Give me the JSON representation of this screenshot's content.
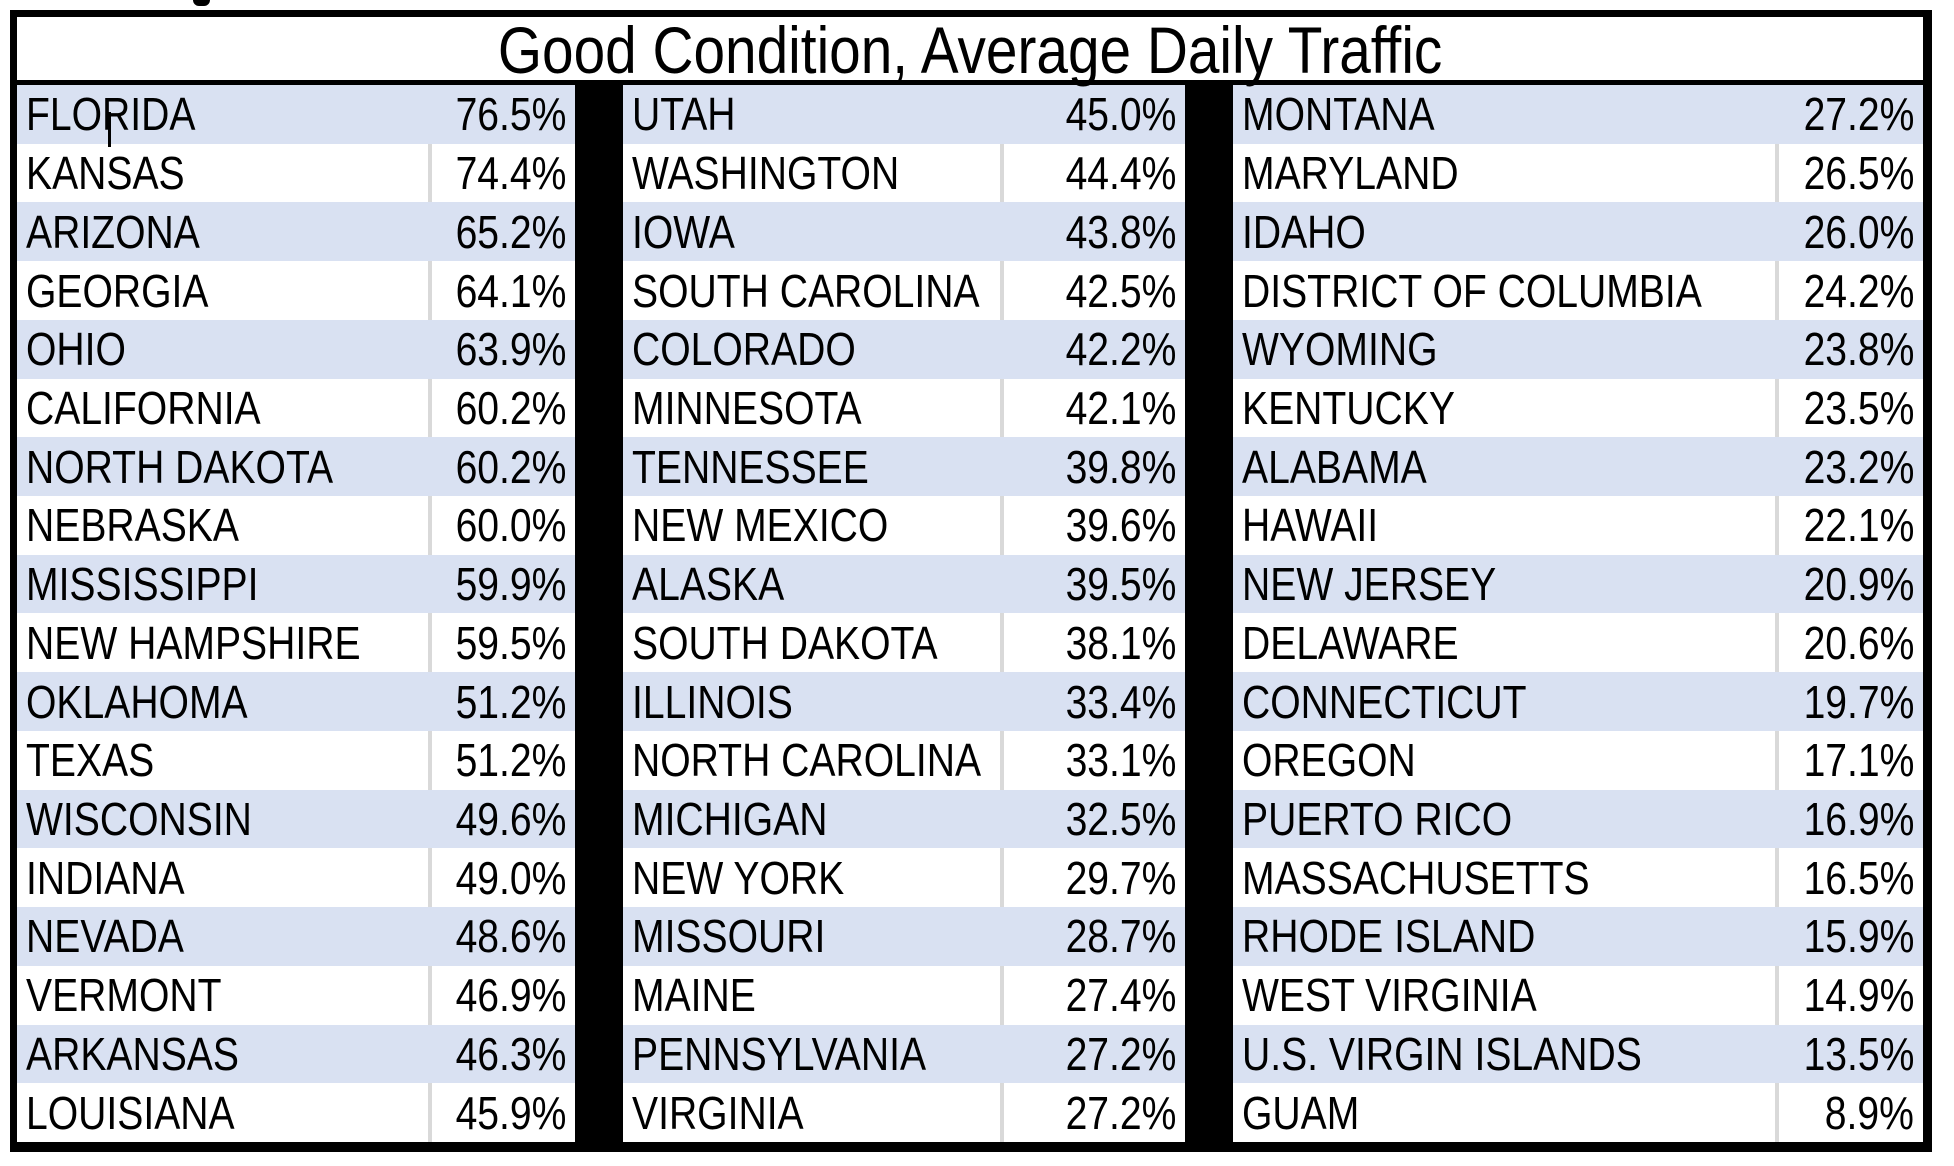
{
  "colors": {
    "band_fill": "#D9E1F2",
    "plain_fill": "#FFFFFF",
    "border": "#000000",
    "inner_divider": "#D9D9D9",
    "text": "#000000"
  },
  "text_cursor": {
    "visible": true,
    "in_row": "FLORIDA",
    "after_text": "FLO"
  },
  "chart_data": {
    "type": "table",
    "title": "Good Condition, Average Daily Traffic",
    "columns_per_group": [
      "state",
      "percent"
    ],
    "legend_position": "none",
    "grid": "banded-rows",
    "groups": [
      {
        "rows": [
          {
            "state": "FLORIDA",
            "value": "76.5%"
          },
          {
            "state": "KANSAS",
            "value": "74.4%"
          },
          {
            "state": "ARIZONA",
            "value": "65.2%"
          },
          {
            "state": "GEORGIA",
            "value": "64.1%"
          },
          {
            "state": "OHIO",
            "value": "63.9%"
          },
          {
            "state": "CALIFORNIA",
            "value": "60.2%"
          },
          {
            "state": "NORTH DAKOTA",
            "value": "60.2%"
          },
          {
            "state": "NEBRASKA",
            "value": "60.0%"
          },
          {
            "state": "MISSISSIPPI",
            "value": "59.9%"
          },
          {
            "state": "NEW HAMPSHIRE",
            "value": "59.5%"
          },
          {
            "state": "OKLAHOMA",
            "value": "51.2%"
          },
          {
            "state": "TEXAS",
            "value": "51.2%"
          },
          {
            "state": "WISCONSIN",
            "value": "49.6%"
          },
          {
            "state": "INDIANA",
            "value": "49.0%"
          },
          {
            "state": "NEVADA",
            "value": "48.6%"
          },
          {
            "state": "VERMONT",
            "value": "46.9%"
          },
          {
            "state": "ARKANSAS",
            "value": "46.3%"
          },
          {
            "state": "LOUISIANA",
            "value": "45.9%"
          }
        ]
      },
      {
        "rows": [
          {
            "state": "UTAH",
            "value": "45.0%"
          },
          {
            "state": "WASHINGTON",
            "value": "44.4%"
          },
          {
            "state": "IOWA",
            "value": "43.8%"
          },
          {
            "state": "SOUTH CAROLINA",
            "value": "42.5%"
          },
          {
            "state": "COLORADO",
            "value": "42.2%"
          },
          {
            "state": "MINNESOTA",
            "value": "42.1%"
          },
          {
            "state": "TENNESSEE",
            "value": "39.8%"
          },
          {
            "state": "NEW MEXICO",
            "value": "39.6%"
          },
          {
            "state": "ALASKA",
            "value": "39.5%"
          },
          {
            "state": "SOUTH DAKOTA",
            "value": "38.1%"
          },
          {
            "state": "ILLINOIS",
            "value": "33.4%"
          },
          {
            "state": "NORTH CAROLINA",
            "value": "33.1%"
          },
          {
            "state": "MICHIGAN",
            "value": "32.5%"
          },
          {
            "state": "NEW YORK",
            "value": "29.7%"
          },
          {
            "state": "MISSOURI",
            "value": "28.7%"
          },
          {
            "state": "MAINE",
            "value": "27.4%"
          },
          {
            "state": "PENNSYLVANIA",
            "value": "27.2%"
          },
          {
            "state": "VIRGINIA",
            "value": "27.2%"
          }
        ]
      },
      {
        "rows": [
          {
            "state": "MONTANA",
            "value": "27.2%"
          },
          {
            "state": "MARYLAND",
            "value": "26.5%"
          },
          {
            "state": "IDAHO",
            "value": "26.0%"
          },
          {
            "state": "DISTRICT OF COLUMBIA",
            "value": "24.2%"
          },
          {
            "state": "WYOMING",
            "value": "23.8%"
          },
          {
            "state": "KENTUCKY",
            "value": "23.5%"
          },
          {
            "state": "ALABAMA",
            "value": "23.2%"
          },
          {
            "state": "HAWAII",
            "value": "22.1%"
          },
          {
            "state": "NEW JERSEY",
            "value": "20.9%"
          },
          {
            "state": "DELAWARE",
            "value": "20.6%"
          },
          {
            "state": "CONNECTICUT",
            "value": "19.7%"
          },
          {
            "state": "OREGON",
            "value": "17.1%"
          },
          {
            "state": "PUERTO RICO",
            "value": "16.9%"
          },
          {
            "state": "MASSACHUSETTS",
            "value": "16.5%"
          },
          {
            "state": "RHODE ISLAND",
            "value": "15.9%"
          },
          {
            "state": "WEST VIRGINIA",
            "value": "14.9%"
          },
          {
            "state": "U.S. VIRGIN ISLANDS",
            "value": "13.5%"
          },
          {
            "state": "GUAM",
            "value": "8.9%"
          }
        ]
      }
    ]
  }
}
